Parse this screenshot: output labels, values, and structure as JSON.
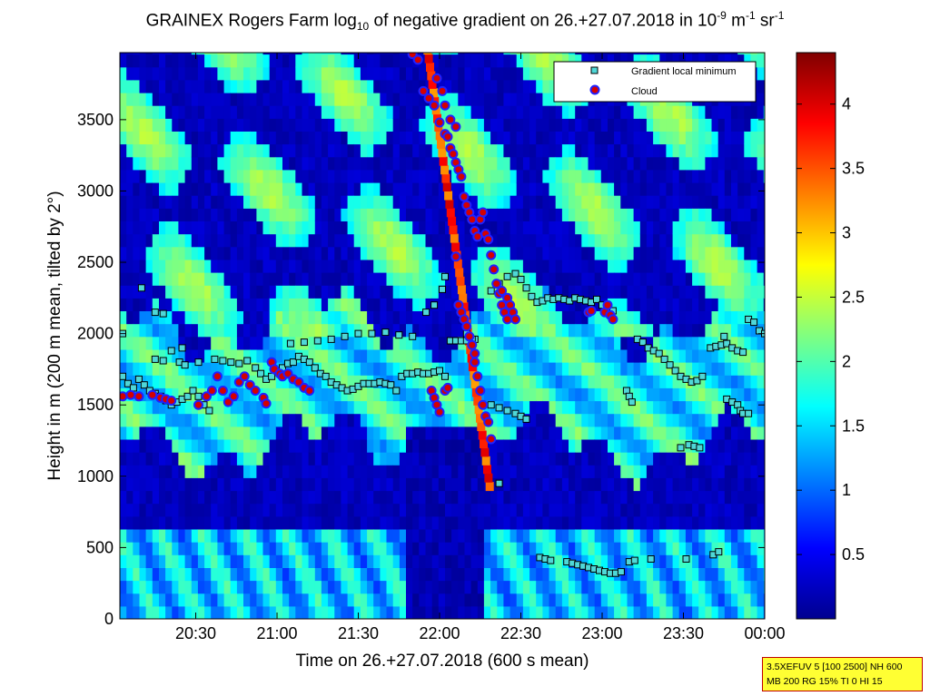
{
  "chart_data": {
    "type": "heatmap",
    "title": {
      "prefix": "GRAINEX Rogers Farm log",
      "log_base": "10",
      "middle": " of negative gradient on 26.+27.07.2018 in 10",
      "exp1": "-9",
      "unit1": " m",
      "exp2": "-1",
      "unit2": " sr",
      "exp3": "-1"
    },
    "xlabel": "Time on 26.+27.07.2018 (600 s mean)",
    "ylabel": "Height in m (200 m mean, tilted by 2°)",
    "x_ticks": [
      "20:30",
      "21:00",
      "21:30",
      "22:00",
      "22:30",
      "23:00",
      "23:30",
      "00:00"
    ],
    "x_range_minutes": [
      1202,
      1440
    ],
    "y_ticks": [
      0,
      500,
      1000,
      1500,
      2000,
      2500,
      3000,
      3500
    ],
    "ylim": [
      0,
      3970
    ],
    "colorbar": {
      "colormap": "jet",
      "range": [
        0,
        4.4
      ],
      "ticks": [
        "0.5",
        "1",
        "1.5",
        "2",
        "2.5",
        "3",
        "3.5",
        "4"
      ]
    },
    "legend": {
      "position": "top-right",
      "entries": [
        {
          "label": "Gradient local minimum",
          "marker": "square",
          "color": "#4fd7d7"
        },
        {
          "label": "Cloud",
          "marker": "circle",
          "color": "#d40000",
          "edge": "#2020ff"
        }
      ]
    },
    "series": [
      {
        "name": "Gradient local minimum",
        "points": [
          [
            1203,
            1700
          ],
          [
            1205,
            1650
          ],
          [
            1207,
            1620
          ],
          [
            1209,
            1680
          ],
          [
            1211,
            1640
          ],
          [
            1213,
            1600
          ],
          [
            1215,
            1580
          ],
          [
            1217,
            1560
          ],
          [
            1219,
            1530
          ],
          [
            1221,
            1500
          ],
          [
            1223,
            1520
          ],
          [
            1225,
            1540
          ],
          [
            1227,
            1560
          ],
          [
            1229,
            1600
          ],
          [
            1231,
            1560
          ],
          [
            1233,
            1500
          ],
          [
            1235,
            1460
          ],
          [
            1237,
            1820
          ],
          [
            1240,
            1810
          ],
          [
            1243,
            1800
          ],
          [
            1246,
            1790
          ],
          [
            1249,
            1810
          ],
          [
            1252,
            1760
          ],
          [
            1254,
            1720
          ],
          [
            1256,
            1680
          ],
          [
            1258,
            1700
          ],
          [
            1260,
            1740
          ],
          [
            1262,
            1760
          ],
          [
            1264,
            1790
          ],
          [
            1266,
            1800
          ],
          [
            1268,
            1840
          ],
          [
            1270,
            1820
          ],
          [
            1272,
            1800
          ],
          [
            1274,
            1760
          ],
          [
            1276,
            1720
          ],
          [
            1278,
            1700
          ],
          [
            1280,
            1660
          ],
          [
            1282,
            1640
          ],
          [
            1284,
            1620
          ],
          [
            1286,
            1600
          ],
          [
            1288,
            1610
          ],
          [
            1290,
            1630
          ],
          [
            1292,
            1650
          ],
          [
            1294,
            1650
          ],
          [
            1296,
            1650
          ],
          [
            1298,
            1660
          ],
          [
            1300,
            1650
          ],
          [
            1302,
            1640
          ],
          [
            1304,
            1600
          ],
          [
            1306,
            1700
          ],
          [
            1308,
            1720
          ],
          [
            1310,
            1720
          ],
          [
            1312,
            1730
          ],
          [
            1314,
            1720
          ],
          [
            1316,
            1720
          ],
          [
            1318,
            1730
          ],
          [
            1320,
            1740
          ],
          [
            1322,
            1700
          ],
          [
            1324,
            1950
          ],
          [
            1326,
            1950
          ],
          [
            1328,
            1950
          ],
          [
            1330,
            1950
          ],
          [
            1332,
            1940
          ],
          [
            1333,
            1960
          ],
          [
            1215,
            1820
          ],
          [
            1218,
            1810
          ],
          [
            1221,
            1880
          ],
          [
            1225,
            1900
          ],
          [
            1231,
            1800
          ],
          [
            1265,
            1930
          ],
          [
            1270,
            1940
          ],
          [
            1275,
            1950
          ],
          [
            1280,
            1960
          ],
          [
            1285,
            1980
          ],
          [
            1290,
            2000
          ],
          [
            1295,
            2000
          ],
          [
            1300,
            2010
          ],
          [
            1305,
            1990
          ],
          [
            1310,
            1980
          ],
          [
            1315,
            2150
          ],
          [
            1318,
            2200
          ],
          [
            1321,
            2310
          ],
          [
            1322,
            2400
          ],
          [
            1330,
            2000
          ],
          [
            1332,
            1960
          ],
          [
            1203,
            2000
          ],
          [
            1210,
            2320
          ],
          [
            1215,
            2150
          ],
          [
            1218,
            2140
          ],
          [
            1224,
            1800
          ],
          [
            1226,
            1780
          ],
          [
            1339,
            2300
          ],
          [
            1342,
            2350
          ],
          [
            1345,
            2400
          ],
          [
            1348,
            2420
          ],
          [
            1350,
            2380
          ],
          [
            1352,
            2320
          ],
          [
            1354,
            2260
          ],
          [
            1356,
            2220
          ],
          [
            1358,
            2230
          ],
          [
            1360,
            2250
          ],
          [
            1362,
            2240
          ],
          [
            1364,
            2250
          ],
          [
            1366,
            2240
          ],
          [
            1368,
            2230
          ],
          [
            1370,
            2250
          ],
          [
            1372,
            2240
          ],
          [
            1374,
            2230
          ],
          [
            1376,
            2220
          ],
          [
            1378,
            2240
          ],
          [
            1380,
            2200
          ],
          [
            1382,
            2180
          ],
          [
            1384,
            2160
          ],
          [
            1393,
            1960
          ],
          [
            1395,
            1940
          ],
          [
            1397,
            1900
          ],
          [
            1399,
            1880
          ],
          [
            1401,
            1860
          ],
          [
            1403,
            1820
          ],
          [
            1405,
            1780
          ],
          [
            1407,
            1740
          ],
          [
            1409,
            1700
          ],
          [
            1411,
            1680
          ],
          [
            1413,
            1660
          ],
          [
            1415,
            1670
          ],
          [
            1417,
            1700
          ],
          [
            1420,
            1900
          ],
          [
            1422,
            1910
          ],
          [
            1424,
            1920
          ],
          [
            1426,
            1930
          ],
          [
            1428,
            1900
          ],
          [
            1430,
            1880
          ],
          [
            1432,
            1870
          ],
          [
            1434,
            2100
          ],
          [
            1436,
            2080
          ],
          [
            1438,
            2020
          ],
          [
            1440,
            2000
          ],
          [
            1425,
            1980
          ],
          [
            1339,
            1500
          ],
          [
            1342,
            1480
          ],
          [
            1345,
            1460
          ],
          [
            1348,
            1440
          ],
          [
            1350,
            1420
          ],
          [
            1352,
            1400
          ],
          [
            1389,
            1600
          ],
          [
            1390,
            1560
          ],
          [
            1391,
            1520
          ],
          [
            1409,
            1200
          ],
          [
            1412,
            1220
          ],
          [
            1414,
            1210
          ],
          [
            1416,
            1200
          ],
          [
            1426,
            1540
          ],
          [
            1428,
            1520
          ],
          [
            1430,
            1500
          ],
          [
            1431,
            1460
          ],
          [
            1432,
            1440
          ],
          [
            1434,
            1440
          ],
          [
            1342,
            950
          ],
          [
            1357,
            430
          ],
          [
            1359,
            420
          ],
          [
            1361,
            410
          ],
          [
            1367,
            400
          ],
          [
            1369,
            390
          ],
          [
            1371,
            380
          ],
          [
            1373,
            370
          ],
          [
            1375,
            360
          ],
          [
            1377,
            350
          ],
          [
            1379,
            340
          ],
          [
            1381,
            330
          ],
          [
            1383,
            320
          ],
          [
            1385,
            320
          ],
          [
            1387,
            330
          ],
          [
            1390,
            400
          ],
          [
            1392,
            410
          ],
          [
            1398,
            420
          ],
          [
            1411,
            420
          ],
          [
            1421,
            450
          ],
          [
            1423,
            470
          ]
        ]
      },
      {
        "name": "Cloud",
        "points": [
          [
            1203,
            1560
          ],
          [
            1206,
            1570
          ],
          [
            1209,
            1560
          ],
          [
            1214,
            1570
          ],
          [
            1217,
            1550
          ],
          [
            1219,
            1540
          ],
          [
            1221,
            1530
          ],
          [
            1231,
            1500
          ],
          [
            1234,
            1560
          ],
          [
            1236,
            1600
          ],
          [
            1238,
            1700
          ],
          [
            1240,
            1600
          ],
          [
            1242,
            1520
          ],
          [
            1244,
            1560
          ],
          [
            1246,
            1660
          ],
          [
            1248,
            1700
          ],
          [
            1250,
            1640
          ],
          [
            1252,
            1600
          ],
          [
            1255,
            1550
          ],
          [
            1256,
            1510
          ],
          [
            1258,
            1800
          ],
          [
            1259,
            1750
          ],
          [
            1261,
            1720
          ],
          [
            1262,
            1700
          ],
          [
            1264,
            1720
          ],
          [
            1266,
            1680
          ],
          [
            1268,
            1660
          ],
          [
            1270,
            1620
          ],
          [
            1272,
            1600
          ],
          [
            1310,
            3960
          ],
          [
            1312,
            3920
          ],
          [
            1314,
            3700
          ],
          [
            1316,
            3650
          ],
          [
            1318,
            3600
          ],
          [
            1320,
            3480
          ],
          [
            1322,
            3400
          ],
          [
            1323,
            3380
          ],
          [
            1324,
            3300
          ],
          [
            1325,
            3260
          ],
          [
            1326,
            3200
          ],
          [
            1327,
            3150
          ],
          [
            1328,
            3100
          ],
          [
            1329,
            2960
          ],
          [
            1330,
            2900
          ],
          [
            1331,
            2850
          ],
          [
            1332,
            2800
          ],
          [
            1333,
            2720
          ],
          [
            1334,
            2680
          ],
          [
            1335,
            2800
          ],
          [
            1336,
            2850
          ],
          [
            1337,
            2700
          ],
          [
            1338,
            2660
          ],
          [
            1339,
            2550
          ],
          [
            1340,
            2450
          ],
          [
            1341,
            2350
          ],
          [
            1342,
            2280
          ],
          [
            1343,
            2200
          ],
          [
            1344,
            2150
          ],
          [
            1345,
            2100
          ],
          [
            1319,
            3790
          ],
          [
            1321,
            3700
          ],
          [
            1322,
            3600
          ],
          [
            1324,
            3500
          ],
          [
            1326,
            3450
          ],
          [
            1326,
            2540
          ],
          [
            1327,
            2200
          ],
          [
            1328,
            2150
          ],
          [
            1329,
            2100
          ],
          [
            1330,
            2050
          ],
          [
            1331,
            1980
          ],
          [
            1332,
            1920
          ],
          [
            1333,
            1860
          ],
          [
            1333,
            1800
          ],
          [
            1334,
            1700
          ],
          [
            1335,
            1600
          ],
          [
            1336,
            1500
          ],
          [
            1337,
            1420
          ],
          [
            1338,
            1380
          ],
          [
            1339,
            1260
          ],
          [
            1317,
            1600
          ],
          [
            1318,
            1550
          ],
          [
            1319,
            1500
          ],
          [
            1320,
            1450
          ],
          [
            1322,
            1600
          ],
          [
            1323,
            1620
          ],
          [
            1343,
            2300
          ],
          [
            1345,
            2250
          ],
          [
            1346,
            2200
          ],
          [
            1347,
            2150
          ],
          [
            1348,
            2100
          ],
          [
            1381,
            2150
          ],
          [
            1382,
            2200
          ],
          [
            1383,
            2130
          ],
          [
            1384,
            2100
          ],
          [
            1375,
            2150
          ],
          [
            1376,
            2160
          ]
        ]
      }
    ]
  },
  "info_box": {
    "line1": "3.5XEFUV 5 [100 2500] NH 600",
    "line2": "MB 200 RG 15% TI 0 HI 15"
  },
  "colors": {
    "background_low": "#00008f",
    "cloud_fill": "#d40000",
    "cloud_edge": "#2020ff",
    "minimum_fill": "#4fd7d7",
    "info_box_fill": "#ffff33",
    "info_box_edge": "#c00000"
  }
}
